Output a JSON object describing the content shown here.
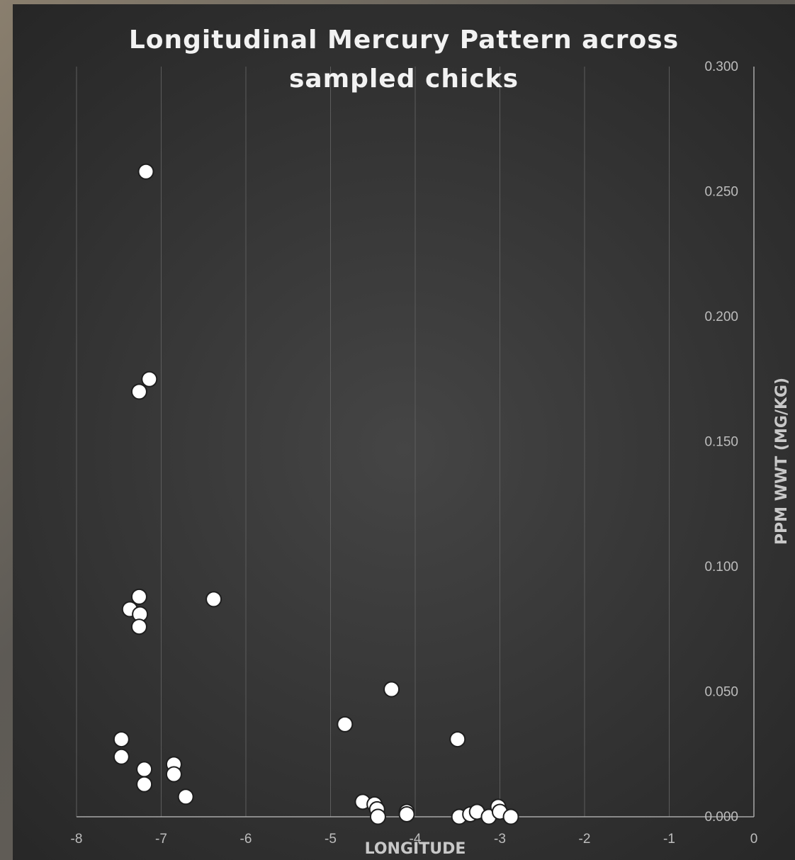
{
  "chart_data": {
    "type": "scatter",
    "title_lines": [
      "Longitudinal Mercury Pattern across",
      "sampled chicks"
    ],
    "xlabel": "LONGITUDE",
    "ylabel": "PPM WWT (MG/KG)",
    "xlim": [
      -8,
      0
    ],
    "ylim": [
      0,
      0.3
    ],
    "x_ticks": [
      -8,
      -7,
      -6,
      -5,
      -4,
      -3,
      -2,
      -1,
      0
    ],
    "x_tick_labels": [
      "-8",
      "-7",
      "-6",
      "-5",
      "-4",
      "-3",
      "-2",
      "-1",
      "0"
    ],
    "y_ticks": [
      0,
      0.05,
      0.1,
      0.15,
      0.2,
      0.25,
      0.3
    ],
    "y_tick_labels": [
      "0.000",
      "0.050",
      "0.100",
      "0.150",
      "0.200",
      "0.250",
      "0.300"
    ],
    "grid": "vertical",
    "y_axis_position": "right",
    "colors": {
      "marker_fill": "#ffffff",
      "marker_edge": "#1e1e1e",
      "background": "#333333"
    },
    "points": [
      {
        "x": -7.18,
        "y": 0.258
      },
      {
        "x": -7.14,
        "y": 0.175
      },
      {
        "x": -7.26,
        "y": 0.17
      },
      {
        "x": -7.26,
        "y": 0.088
      },
      {
        "x": -7.37,
        "y": 0.083
      },
      {
        "x": -7.25,
        "y": 0.081
      },
      {
        "x": -7.26,
        "y": 0.076
      },
      {
        "x": -6.38,
        "y": 0.087
      },
      {
        "x": -7.47,
        "y": 0.031
      },
      {
        "x": -7.47,
        "y": 0.024
      },
      {
        "x": -7.2,
        "y": 0.019
      },
      {
        "x": -7.2,
        "y": 0.013
      },
      {
        "x": -6.85,
        "y": 0.021
      },
      {
        "x": -6.85,
        "y": 0.017
      },
      {
        "x": -6.71,
        "y": 0.008
      },
      {
        "x": -4.83,
        "y": 0.037
      },
      {
        "x": -4.28,
        "y": 0.051
      },
      {
        "x": -3.5,
        "y": 0.031
      },
      {
        "x": -4.62,
        "y": 0.006
      },
      {
        "x": -4.48,
        "y": 0.005
      },
      {
        "x": -4.45,
        "y": 0.003
      },
      {
        "x": -4.44,
        "y": 0.0
      },
      {
        "x": -4.1,
        "y": 0.002
      },
      {
        "x": -4.1,
        "y": 0.001
      },
      {
        "x": -3.48,
        "y": 0.0
      },
      {
        "x": -3.35,
        "y": 0.001
      },
      {
        "x": -3.27,
        "y": 0.002
      },
      {
        "x": -3.13,
        "y": 0.0
      },
      {
        "x": -3.02,
        "y": 0.004
      },
      {
        "x": -3.0,
        "y": 0.002
      },
      {
        "x": -2.87,
        "y": 0.0
      }
    ]
  }
}
